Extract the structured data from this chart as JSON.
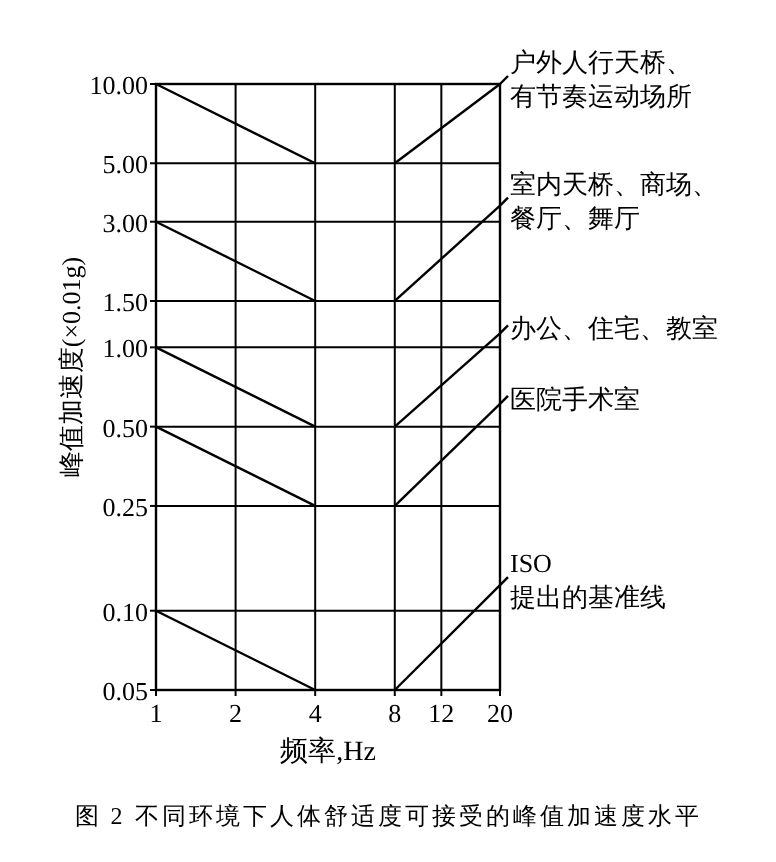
{
  "chart_data": {
    "type": "line",
    "xlabel": "频率,Hz",
    "ylabel": "峰值加速度(×0.01g)",
    "log": "xy",
    "grid": true,
    "legend": "right",
    "marker": "none",
    "line_style": "solid",
    "xlim": [
      1,
      20
    ],
    "ylim": [
      0.05,
      10
    ],
    "xticks": [
      1,
      2,
      4,
      8,
      12,
      20
    ],
    "yticks": [
      {
        "value": 0.05,
        "label": "0.05"
      },
      {
        "value": 0.1,
        "label": "0.10"
      },
      {
        "value": 0.25,
        "label": "0.25"
      },
      {
        "value": 0.5,
        "label": "0.50"
      },
      {
        "value": 1,
        "label": "1.00"
      },
      {
        "value": 1.5,
        "label": "1.50"
      },
      {
        "value": 3,
        "label": "3.00"
      },
      {
        "value": 5,
        "label": "5.00"
      },
      {
        "value": 10,
        "label": "10.00"
      }
    ],
    "series": [
      {
        "color": "#000000",
        "x": [
          1,
          4
        ],
        "values": [
          10,
          5
        ]
      },
      {
        "name": "户外人行天桥、有节奏运动场所",
        "color": "#000000",
        "x": [
          8,
          20
        ],
        "values": [
          5,
          10
        ]
      },
      {
        "color": "#000000",
        "x": [
          1,
          4
        ],
        "values": [
          3,
          1.5
        ]
      },
      {
        "name": "室内天桥、商场、餐厅、舞厅",
        "color": "#000000",
        "x": [
          8,
          20
        ],
        "values": [
          1.5,
          3.45
        ]
      },
      {
        "color": "#000000",
        "x": [
          1,
          4
        ],
        "values": [
          1,
          0.5
        ]
      },
      {
        "name": "办公、住宅、教室",
        "color": "#000000",
        "x": [
          8,
          20
        ],
        "values": [
          0.5,
          1.13
        ]
      },
      {
        "color": "#000000",
        "x": [
          1,
          4
        ],
        "values": [
          0.5,
          0.25
        ]
      },
      {
        "name": "医院手术室",
        "color": "#000000",
        "x": [
          8,
          20
        ],
        "values": [
          0.25,
          0.61
        ]
      },
      {
        "color": "#000000",
        "x": [
          1,
          4
        ],
        "values": [
          0.1,
          0.05
        ]
      },
      {
        "name": "ISO 提出的基准线",
        "color": "#000000",
        "x": [
          8,
          20
        ],
        "values": [
          0.05,
          0.125
        ]
      }
    ],
    "annotations": [
      "图 2 不同环境下人体舒适度可接受的峰值加速度水平"
    ]
  }
}
